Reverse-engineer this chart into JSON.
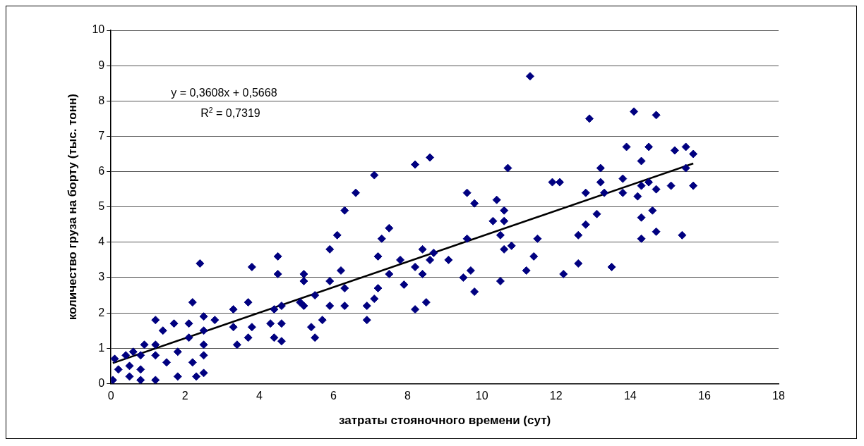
{
  "chart_data": {
    "type": "scatter",
    "xlabel": "затраты стояночного времени (сут)",
    "ylabel": "количество груза на борту (тыс. тонн)",
    "annotations": [
      "y = 0,3608x + 0,5668",
      "R$^{2}$ = 0,7319"
    ],
    "xlim": [
      0,
      18
    ],
    "xticks": [
      0,
      2,
      4,
      6,
      8,
      10,
      12,
      14,
      16,
      18
    ],
    "ylim": [
      0,
      10
    ],
    "yticks": [
      0,
      1,
      2,
      3,
      4,
      5,
      6,
      7,
      8,
      9,
      10
    ],
    "grid": "y",
    "legend": false,
    "marker": "diamond",
    "series": [
      {
        "type": "scatter",
        "color": "#000080",
        "x": [
          0.05,
          0.1,
          0.2,
          0.4,
          0.5,
          0.5,
          0.6,
          0.8,
          0.8,
          0.8,
          0.9,
          1.2,
          1.2,
          1.2,
          1.2,
          1.4,
          1.5,
          1.7,
          1.8,
          1.8,
          2.1,
          2.1,
          2.2,
          2.2,
          2.3,
          2.4,
          2.5,
          2.5,
          2.5,
          2.5,
          2.5,
          2.8,
          3.3,
          3.3,
          3.4,
          3.7,
          3.7,
          3.8,
          3.8,
          4.3,
          4.4,
          4.4,
          4.5,
          4.5,
          4.6,
          4.6,
          4.6,
          5.1,
          5.2,
          5.2,
          5.2,
          5.4,
          5.5,
          5.5,
          5.7,
          5.9,
          5.9,
          5.9,
          6.1,
          6.2,
          6.3,
          6.3,
          6.3,
          6.6,
          6.9,
          6.9,
          7.1,
          7.1,
          7.2,
          7.2,
          7.3,
          7.5,
          7.5,
          7.8,
          7.9,
          8.2,
          8.2,
          8.2,
          8.4,
          8.4,
          8.5,
          8.6,
          8.6,
          8.7,
          9.1,
          9.5,
          9.6,
          9.6,
          9.7,
          9.8,
          9.8,
          10.3,
          10.4,
          10.5,
          10.5,
          10.6,
          10.6,
          10.6,
          10.7,
          10.8,
          11.2,
          11.3,
          11.4,
          11.5,
          11.9,
          12.1,
          12.2,
          12.6,
          12.6,
          12.8,
          12.8,
          12.9,
          13.1,
          13.2,
          13.2,
          13.3,
          13.5,
          13.8,
          13.8,
          13.9,
          14.1,
          14.2,
          14.3,
          14.3,
          14.3,
          14.3,
          14.5,
          14.5,
          14.6,
          14.7,
          14.7,
          14.7,
          15.1,
          15.2,
          15.4,
          15.5,
          15.5,
          15.7,
          15.7
        ],
        "values": [
          0.1,
          0.7,
          0.4,
          0.8,
          0.2,
          0.5,
          0.9,
          0.1,
          0.4,
          0.8,
          1.1,
          0.1,
          0.8,
          1.1,
          1.8,
          1.5,
          0.6,
          1.7,
          0.2,
          0.9,
          1.3,
          1.7,
          2.3,
          0.6,
          0.2,
          3.4,
          0.3,
          0.8,
          1.1,
          1.5,
          1.9,
          1.8,
          2.1,
          1.6,
          1.1,
          2.3,
          1.3,
          3.3,
          1.6,
          1.7,
          2.1,
          1.3,
          3.6,
          3.1,
          2.2,
          1.7,
          1.2,
          2.3,
          2.2,
          3.1,
          2.9,
          1.6,
          1.3,
          2.5,
          1.8,
          2.2,
          2.9,
          3.8,
          4.2,
          3.2,
          4.9,
          2.7,
          2.2,
          5.4,
          1.8,
          2.2,
          2.4,
          5.9,
          3.6,
          2.7,
          4.1,
          4.4,
          3.1,
          3.5,
          2.8,
          6.2,
          3.3,
          2.1,
          3.8,
          3.1,
          2.3,
          3.5,
          6.4,
          3.7,
          3.5,
          3.0,
          5.4,
          4.1,
          3.2,
          5.1,
          2.6,
          4.6,
          5.2,
          4.2,
          2.9,
          4.9,
          4.6,
          3.8,
          6.1,
          3.9,
          3.2,
          8.7,
          3.6,
          4.1,
          5.7,
          5.7,
          3.1,
          4.2,
          3.4,
          5.4,
          4.5,
          7.5,
          4.8,
          5.7,
          6.1,
          5.4,
          3.3,
          5.8,
          5.4,
          6.7,
          7.7,
          5.3,
          6.3,
          5.6,
          4.7,
          4.1,
          6.7,
          5.7,
          4.9,
          7.6,
          5.5,
          4.3,
          5.6,
          6.6,
          4.2,
          6.7,
          6.1,
          6.5,
          5.6
        ]
      },
      {
        "type": "line",
        "color": "#000000",
        "marker": "none",
        "line_style": "solid",
        "x": [
          0.05,
          15.7
        ],
        "values": [
          0.58,
          6.23
        ]
      }
    ]
  }
}
